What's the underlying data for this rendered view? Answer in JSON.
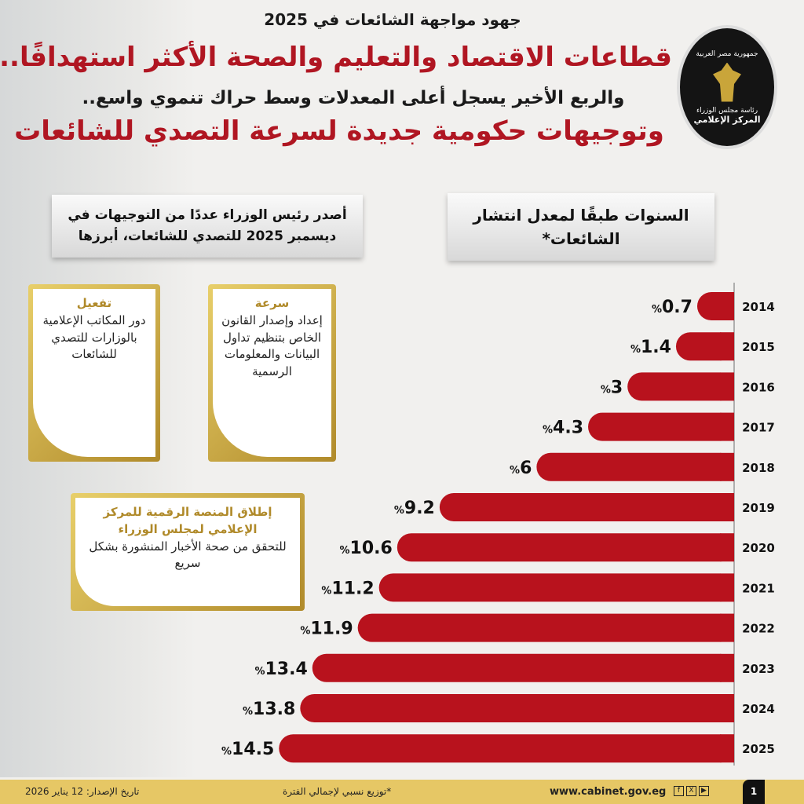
{
  "header": {
    "subtitle": "جهود مواجهة الشائعات في 2025",
    "title1": "قطاعات الاقتصاد والتعليم والصحة الأكثر استهدافًا..",
    "title2": "والربع الأخير يسجل أعلى المعدلات وسط حراك تنموي واسع..",
    "title3": "وتوجيهات حكومية جديدة لسرعة التصدي للشائعات"
  },
  "logo": {
    "text_top": "جمهورية مصر العربية",
    "text_mid": "رئاسة مجلس الوزراء",
    "text_bottom": "المركز الإعلامي"
  },
  "chart_banner": "السنوات طبقًا لمعدل انتشار الشائعات*",
  "directives_banner": "أصدر رئيس الوزراء عددًا من التوجيهات في ديسمبر 2025 للتصدي للشائعات، أبرزها",
  "cards": [
    {
      "heading": "سرعة",
      "body": "إعداد وإصدار القانون الخاص بتنظيم تداول البيانات والمعلومات الرسمية"
    },
    {
      "heading": "تفعيل",
      "body": "دور المكاتب الإعلامية بالوزارات للتصدي للشائعات"
    },
    {
      "heading": "إطلاق المنصة الرقمية للمركز الإعلامي لمجلس الوزراء",
      "body": "للتحقق من صحة الأخبار المنشورة بشكل سريع"
    }
  ],
  "chart_data": {
    "type": "bar",
    "orientation": "horizontal",
    "unit": "%",
    "categories": [
      "2014",
      "2015",
      "2016",
      "2017",
      "2018",
      "2019",
      "2020",
      "2021",
      "2022",
      "2023",
      "2024",
      "2025"
    ],
    "values": [
      0.7,
      1.4,
      3,
      4.3,
      6,
      9.2,
      10.6,
      11.2,
      11.9,
      13.4,
      13.8,
      14.5
    ],
    "bar_color": "#b8121d"
  },
  "footer": {
    "page": "1",
    "website": "www.cabinet.gov.eg",
    "note": "*توزيع نسبي لإجمالي الفترة",
    "date": "تاريخ الإصدار: 12 يناير 2026",
    "social": [
      "f",
      "X",
      "▶"
    ]
  }
}
